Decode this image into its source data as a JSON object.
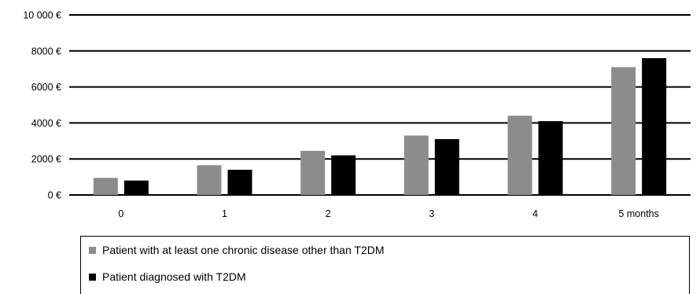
{
  "chart_data": {
    "type": "bar",
    "title": "",
    "xlabel": "",
    "ylabel": "",
    "categories": [
      "0",
      "1",
      "2",
      "3",
      "4",
      "5 months"
    ],
    "ylim": [
      0,
      10000
    ],
    "yticks": [
      0,
      2000,
      4000,
      6000,
      8000,
      10000
    ],
    "ytick_labels": [
      "0 €",
      "2000 €",
      "4000 €",
      "6000 €",
      "8000 €",
      "10 000 €"
    ],
    "grid": true,
    "legend_position": "bottom",
    "series": [
      {
        "name": "Patient with at least one chronic disease other than T2DM",
        "color": "#8c8c8c",
        "values": [
          950,
          1650,
          2450,
          3300,
          4400,
          7100
        ]
      },
      {
        "name": "Patient diagnosed with T2DM",
        "color": "#000000",
        "values": [
          800,
          1400,
          2200,
          3100,
          4100,
          7600
        ]
      }
    ]
  }
}
